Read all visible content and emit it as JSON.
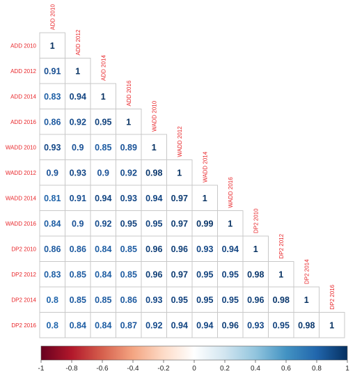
{
  "chart_data": {
    "type": "heatmap",
    "variables": [
      "ADD 2010",
      "ADD 2012",
      "ADD 2014",
      "ADD 2016",
      "WADD 2010",
      "WADD 2012",
      "WADD 2014",
      "WADD 2016",
      "DP2 2010",
      "DP2 2012",
      "DP2 2014",
      "DP2 2016"
    ],
    "lower_triangle_values": [
      [
        "1"
      ],
      [
        "0.91",
        "1"
      ],
      [
        "0.83",
        "0.94",
        "1"
      ],
      [
        "0.86",
        "0.92",
        "0.95",
        "1"
      ],
      [
        "0.93",
        "0.9",
        "0.85",
        "0.89",
        "1"
      ],
      [
        "0.9",
        "0.93",
        "0.9",
        "0.92",
        "0.98",
        "1"
      ],
      [
        "0.81",
        "0.91",
        "0.94",
        "0.93",
        "0.94",
        "0.97",
        "1"
      ],
      [
        "0.84",
        "0.9",
        "0.92",
        "0.95",
        "0.95",
        "0.97",
        "0.99",
        "1"
      ],
      [
        "0.86",
        "0.86",
        "0.84",
        "0.85",
        "0.96",
        "0.96",
        "0.93",
        "0.94",
        "1"
      ],
      [
        "0.83",
        "0.85",
        "0.84",
        "0.85",
        "0.96",
        "0.97",
        "0.95",
        "0.95",
        "0.98",
        "1"
      ],
      [
        "0.8",
        "0.85",
        "0.85",
        "0.86",
        "0.93",
        "0.95",
        "0.95",
        "0.95",
        "0.96",
        "0.98",
        "1"
      ],
      [
        "0.8",
        "0.84",
        "0.84",
        "0.87",
        "0.92",
        "0.94",
        "0.94",
        "0.96",
        "0.93",
        "0.95",
        "0.98",
        "1"
      ]
    ],
    "colorbar": {
      "range": [
        -1,
        1
      ],
      "ticks": [
        "-1",
        "-0.8",
        "-0.6",
        "-0.4",
        "-0.2",
        "0",
        "0.2",
        "0.4",
        "0.6",
        "0.8",
        "1"
      ],
      "colors": [
        "#67001F",
        "#B2182B",
        "#D6604D",
        "#F4A582",
        "#FDDBC7",
        "#FFFFFF",
        "#D1E5F0",
        "#92C5DE",
        "#4393C3",
        "#2166AC",
        "#053061"
      ]
    },
    "label_color": "#e8262a",
    "grid": true,
    "legend": "bottom"
  }
}
